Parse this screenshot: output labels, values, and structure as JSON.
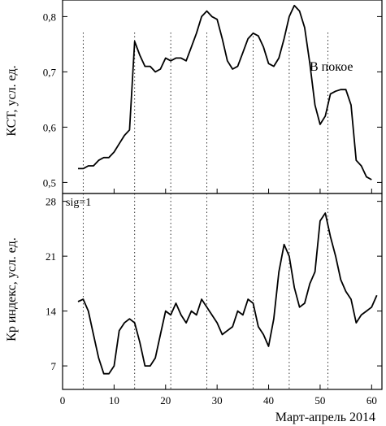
{
  "chart_data": [
    {
      "type": "line",
      "panel": "top",
      "ylabel": "КСТ, усл. ед.",
      "annotation": "В покое",
      "xlim": [
        0,
        62
      ],
      "ylim": [
        0.48,
        0.83
      ],
      "yticks": [
        "0,5",
        "0,6",
        "0,7",
        "0,8"
      ],
      "ytick_values": [
        0.5,
        0.6,
        0.7,
        0.8
      ],
      "grid": false,
      "series": [
        {
          "x": [
            3,
            4,
            5,
            6,
            7,
            8,
            9,
            10,
            11,
            12,
            13,
            14,
            15,
            16,
            17,
            18,
            19,
            20,
            21,
            22,
            23,
            24,
            25,
            26,
            27,
            28,
            29,
            30,
            31,
            32,
            33,
            34,
            35,
            36,
            37,
            38,
            39,
            40,
            41,
            42,
            43,
            44,
            45,
            46,
            47,
            48,
            49,
            50,
            51,
            52,
            53,
            54,
            55,
            56,
            57,
            58,
            59,
            60
          ],
          "y": [
            0.525,
            0.525,
            0.53,
            0.53,
            0.54,
            0.545,
            0.545,
            0.555,
            0.57,
            0.585,
            0.595,
            0.755,
            0.73,
            0.71,
            0.71,
            0.7,
            0.705,
            0.725,
            0.72,
            0.725,
            0.725,
            0.72,
            0.745,
            0.77,
            0.8,
            0.81,
            0.8,
            0.795,
            0.76,
            0.72,
            0.705,
            0.71,
            0.735,
            0.76,
            0.77,
            0.765,
            0.745,
            0.715,
            0.71,
            0.725,
            0.76,
            0.8,
            0.82,
            0.81,
            0.78,
            0.715,
            0.64,
            0.605,
            0.62,
            0.66,
            0.665,
            0.668,
            0.668,
            0.64,
            0.54,
            0.53,
            0.51,
            0.505
          ]
        }
      ]
    },
    {
      "type": "line",
      "panel": "bottom",
      "ylabel": "Кр индекс, усл. ед.",
      "annotation": "sig=1",
      "xlabel": "Март-апрель 2014",
      "xlim": [
        0,
        62
      ],
      "ylim": [
        4,
        29
      ],
      "xticks": [
        "0",
        "10",
        "20",
        "30",
        "40",
        "50",
        "60"
      ],
      "xtick_values": [
        0,
        10,
        20,
        30,
        40,
        50,
        60
      ],
      "yticks": [
        "7",
        "14",
        "21",
        "28"
      ],
      "ytick_values": [
        7,
        14,
        21,
        28
      ],
      "grid": false,
      "series": [
        {
          "x": [
            3,
            4,
            5,
            6,
            7,
            8,
            9,
            10,
            11,
            12,
            13,
            14,
            15,
            16,
            17,
            18,
            19,
            20,
            21,
            22,
            23,
            24,
            25,
            26,
            27,
            28,
            29,
            30,
            31,
            32,
            33,
            34,
            35,
            36,
            37,
            38,
            39,
            40,
            41,
            42,
            43,
            44,
            45,
            46,
            47,
            48,
            49,
            50,
            51,
            52,
            53,
            54,
            55,
            56,
            57,
            58,
            59,
            60,
            61
          ],
          "y": [
            15.2,
            15.5,
            14,
            11,
            8,
            6,
            6,
            7,
            11.5,
            12.5,
            13,
            12.5,
            10,
            7,
            7,
            8,
            11,
            14,
            13.5,
            15,
            13.5,
            12.5,
            14,
            13.5,
            15.5,
            14.5,
            13.5,
            12.5,
            11,
            11.5,
            12,
            14,
            13.5,
            15.5,
            15,
            12,
            11,
            9.5,
            13,
            19,
            22.5,
            21,
            17,
            14.5,
            15,
            17.5,
            19,
            25.5,
            26.5,
            23.5,
            21,
            18,
            16.5,
            15.5,
            12.5,
            13.5,
            14,
            14.5,
            16
          ]
        }
      ]
    }
  ],
  "markers_x": [
    4,
    14,
    21,
    28,
    37,
    44,
    51.5
  ]
}
